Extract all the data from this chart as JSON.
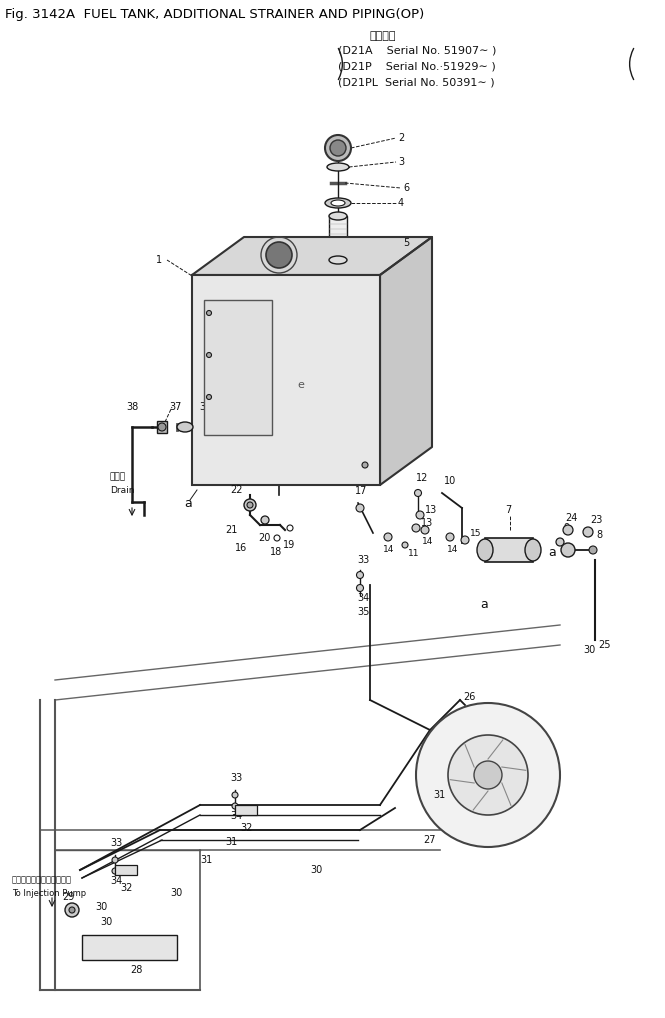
{
  "title": "Fig. 3142A  FUEL TANK, ADDITIONAL STRAINER AND PIPING(OP)",
  "subtitle_jp": "適用号機",
  "serial_lines": [
    "(D21A    Serial No. 51907∼ )",
    "(D21P    Serial No.·51929∼ )",
    "(D21PL  Serial No. 50391∼ )"
  ],
  "bg_color": "#ffffff",
  "line_color": "#1a1a1a",
  "label_color": "#111111",
  "drain_label_jp": "ドレン",
  "drain_label_en": "Drain",
  "injection_label_jp": "インジェクションポンプへ",
  "injection_label_en": "To Injection Pump"
}
